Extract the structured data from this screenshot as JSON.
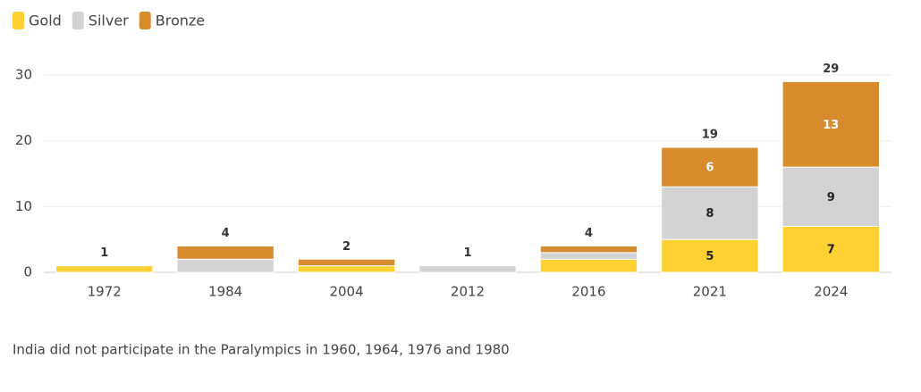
{
  "chart_data": {
    "type": "stacked_bar",
    "categories": [
      "1972",
      "1984",
      "2004",
      "2012",
      "2016",
      "2021",
      "2024"
    ],
    "series": [
      {
        "name": "Gold",
        "color": "#fdd131",
        "label_color": "#222222",
        "values": [
          1,
          0,
          1,
          0,
          2,
          5,
          7
        ]
      },
      {
        "name": "Silver",
        "color": "#d3d3d3",
        "label_color": "#222222",
        "values": [
          0,
          2,
          0,
          1,
          1,
          8,
          9
        ]
      },
      {
        "name": "Bronze",
        "color": "#d88b2d",
        "label_color": "#ffffff",
        "values": [
          0,
          2,
          1,
          0,
          1,
          6,
          13
        ]
      }
    ],
    "totals": [
      1,
      4,
      2,
      1,
      4,
      19,
      29
    ],
    "ylim": [
      0,
      30
    ],
    "yticks": [
      0,
      10,
      20,
      30
    ],
    "grid": true,
    "legend": "top-left",
    "note": "India did not participate in the Paralympics in 1960, 1964, 1976 and 1980"
  }
}
